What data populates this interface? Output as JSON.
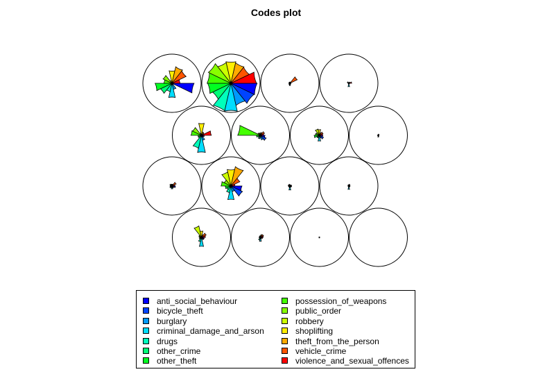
{
  "chart_data": {
    "type": "som-codes-fan",
    "title": "Codes plot",
    "grid": {
      "rows": 4,
      "cols": 4,
      "topology": "hexagonal"
    },
    "variables": [
      "anti_social_behaviour",
      "bicycle_theft",
      "burglary",
      "criminal_damage_and_arson",
      "drugs",
      "other_crime",
      "other_theft",
      "possession_of_weapons",
      "public_order",
      "robbery",
      "shoplifting",
      "theft_from_the_person",
      "vehicle_crime",
      "violence_and_sexual_offences"
    ],
    "colors": [
      "#0000ff",
      "#0044ff",
      "#0099ff",
      "#00ddff",
      "#00ffbb",
      "#00ff77",
      "#00ff22",
      "#44ff00",
      "#88ff00",
      "#ccff00",
      "#ffee00",
      "#ffaa00",
      "#ff5500",
      "#ff0000"
    ],
    "units": [
      [
        0.76,
        0.06,
        0.22,
        0.5,
        0.3,
        0.44,
        0.58,
        0.28,
        0.34,
        0.1,
        0.44,
        0.58,
        0.54,
        0.28
      ],
      [
        0.9,
        0.88,
        0.78,
        0.98,
        0.97,
        0.7,
        0.8,
        0.82,
        0.86,
        0.73,
        0.76,
        0.72,
        0.7,
        0.88
      ],
      [
        0.03,
        0.03,
        0.04,
        0.08,
        0.05,
        0.03,
        0.03,
        0.03,
        0.03,
        0.04,
        0.04,
        0.04,
        0.28,
        0.04
      ],
      [
        0.02,
        0.02,
        0.02,
        0.12,
        0.02,
        0.02,
        0.02,
        0.02,
        0.06,
        0.02,
        0.02,
        0.04,
        0.02,
        0.1
      ],
      [
        0.1,
        0.08,
        0.18,
        0.6,
        0.46,
        0.12,
        0.12,
        0.36,
        0.34,
        0.08,
        0.42,
        0.12,
        0.1,
        0.34
      ],
      [
        0.16,
        0.22,
        0.16,
        0.1,
        0.12,
        0.08,
        0.14,
        0.78,
        0.1,
        0.08,
        0.08,
        0.1,
        0.16,
        0.12
      ],
      [
        0.12,
        0.16,
        0.1,
        0.2,
        0.1,
        0.1,
        0.18,
        0.14,
        0.12,
        0.22,
        0.2,
        0.1,
        0.14,
        0.12
      ],
      [
        0.02,
        0.02,
        0.03,
        0.06,
        0.02,
        0.02,
        0.02,
        0.02,
        0.02,
        0.02,
        0.02,
        0.04,
        0.02,
        0.02
      ],
      [
        0.12,
        0.06,
        0.08,
        0.1,
        0.06,
        0.08,
        0.06,
        0.06,
        0.08,
        0.06,
        0.06,
        0.06,
        0.16,
        0.1
      ],
      [
        0.38,
        0.44,
        0.2,
        0.48,
        0.24,
        0.16,
        0.2,
        0.34,
        0.26,
        0.5,
        0.58,
        0.68,
        0.34,
        0.14
      ],
      [
        0.06,
        0.03,
        0.05,
        0.14,
        0.05,
        0.04,
        0.04,
        0.06,
        0.04,
        0.06,
        0.04,
        0.04,
        0.04,
        0.06
      ],
      [
        0.04,
        0.02,
        0.04,
        0.12,
        0.03,
        0.02,
        0.02,
        0.03,
        0.03,
        0.04,
        0.04,
        0.06,
        0.04,
        0.04
      ],
      [
        0.1,
        0.1,
        0.08,
        0.32,
        0.16,
        0.08,
        0.06,
        0.08,
        0.1,
        0.4,
        0.22,
        0.1,
        0.18,
        0.14
      ],
      [
        0.08,
        0.04,
        0.06,
        0.14,
        0.1,
        0.04,
        0.04,
        0.04,
        0.04,
        0.04,
        0.06,
        0.1,
        0.12,
        0.1
      ],
      [
        0.01,
        0.01,
        0.01,
        0.02,
        0.01,
        0.01,
        0.01,
        0.01,
        0.01,
        0.01,
        0.01,
        0.01,
        0.01,
        0.01
      ],
      [
        0.0,
        0.0,
        0.0,
        0.0,
        0.0,
        0.0,
        0.0,
        0.0,
        0.0,
        0.0,
        0.0,
        0.0,
        0.0,
        0.0
      ]
    ],
    "legend_position": "bottom"
  }
}
